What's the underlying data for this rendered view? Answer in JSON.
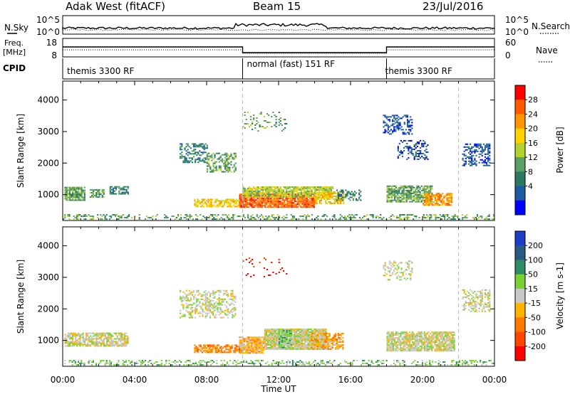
{
  "header": {
    "title": "Adak West (fitACF)",
    "beam": "Beam 15",
    "date": "23/Jul/2016"
  },
  "summary_panels": {
    "nsky": {
      "label": "N.Sky",
      "ticks": [
        "10^5",
        "10^0"
      ]
    },
    "nsearch": {
      "label": "N.Search",
      "ticks": [
        "10^5",
        "10^0"
      ]
    },
    "freq": {
      "label_line1": "Freq.",
      "label_line2": "[MHz]",
      "ticks": [
        "18",
        "8"
      ]
    },
    "nave": {
      "label": "Nave",
      "ticks": [
        "60",
        "0"
      ]
    },
    "cpid": {
      "label": "CPID",
      "segments": [
        {
          "text": "themis 3300 RF",
          "start_h": 0,
          "end_h": 10
        },
        {
          "text": "normal (fast) 151 RF",
          "start_h": 10,
          "end_h": 18
        },
        {
          "text": "themis 3300 RF",
          "start_h": 18,
          "end_h": 22
        }
      ]
    }
  },
  "chart_data": [
    {
      "type": "heatmap",
      "name": "Power",
      "ylabel": "Slant Range [km]",
      "xlabel": "Time UT",
      "xlim": [
        0,
        24
      ],
      "ylim": [
        180,
        4600
      ],
      "yticks": [
        "1000",
        "2000",
        "3000",
        "4000"
      ],
      "xticks": [
        "00:00",
        "04:00",
        "08:00",
        "12:00",
        "16:00",
        "20:00",
        "00:00"
      ],
      "colorbar": {
        "label": "Power [dB]",
        "ticks": [
          "28",
          "24",
          "20",
          "16",
          "12",
          "8",
          "4"
        ],
        "colors": [
          "#ff0000",
          "#ff5a00",
          "#ff9600",
          "#ffd200",
          "#b4d22d",
          "#5aa064",
          "#2d7864",
          "#1e5aa0",
          "#0000ff"
        ]
      },
      "regions": [
        {
          "t0": 0.1,
          "t1": 1.2,
          "r0": 800,
          "r1": 1250,
          "level": 5,
          "dens": 0.85
        },
        {
          "t0": 1.5,
          "t1": 2.3,
          "r0": 900,
          "r1": 1150,
          "level": 5,
          "dens": 0.7
        },
        {
          "t0": 2.6,
          "t1": 3.6,
          "r0": 1000,
          "r1": 1250,
          "level": 6,
          "dens": 0.6
        },
        {
          "t0": 6.5,
          "t1": 8.0,
          "r0": 2000,
          "r1": 2600,
          "level": 6,
          "dens": 0.5
        },
        {
          "t0": 8.0,
          "t1": 9.6,
          "r0": 1700,
          "r1": 2300,
          "level": 5,
          "dens": 0.45
        },
        {
          "t0": 7.3,
          "t1": 10.0,
          "r0": 600,
          "r1": 850,
          "level": 3,
          "dens": 0.7
        },
        {
          "t0": 9.8,
          "t1": 14.0,
          "r0": 580,
          "r1": 1000,
          "level": 1,
          "dens": 0.9
        },
        {
          "t0": 10.0,
          "t1": 15.0,
          "r0": 900,
          "r1": 1250,
          "level": 4,
          "dens": 0.85
        },
        {
          "t0": 14.0,
          "t1": 15.6,
          "r0": 700,
          "r1": 1100,
          "level": 3,
          "dens": 0.7
        },
        {
          "t0": 15.2,
          "t1": 16.6,
          "r0": 800,
          "r1": 1150,
          "level": 6,
          "dens": 0.4
        },
        {
          "t0": 18.0,
          "t1": 20.5,
          "r0": 750,
          "r1": 1250,
          "level": 5,
          "dens": 0.8
        },
        {
          "t0": 20.0,
          "t1": 21.6,
          "r0": 650,
          "r1": 1050,
          "level": 2,
          "dens": 0.75
        },
        {
          "t0": 17.8,
          "t1": 19.4,
          "r0": 2900,
          "r1": 3500,
          "level": 7,
          "dens": 0.4
        },
        {
          "t0": 18.6,
          "t1": 20.3,
          "r0": 2100,
          "r1": 2700,
          "level": 7,
          "dens": 0.3
        },
        {
          "t0": 22.2,
          "t1": 23.7,
          "r0": 1900,
          "r1": 2600,
          "level": 7,
          "dens": 0.45
        },
        {
          "t0": 10.0,
          "t1": 12.4,
          "r0": 3000,
          "r1": 3600,
          "level": 5,
          "dens": 0.15
        },
        {
          "t0": 0.0,
          "t1": 24.0,
          "r0": 200,
          "r1": 380,
          "level": 5,
          "dens": 0.35
        }
      ]
    },
    {
      "type": "heatmap",
      "name": "Velocity",
      "ylabel": "Slant Range [km]",
      "xlabel": "Time UT",
      "xlim": [
        0,
        24
      ],
      "ylim": [
        180,
        4600
      ],
      "yticks": [
        "1000",
        "2000",
        "3000",
        "4000"
      ],
      "xticks": [
        "00:00",
        "04:00",
        "08:00",
        "12:00",
        "16:00",
        "20:00",
        "00:00"
      ],
      "colorbar": {
        "label": "Velocity [m s-1]",
        "ticks": [
          "200",
          "100",
          "50",
          "15",
          "-15",
          "-50",
          "-100",
          "-200"
        ],
        "colors": [
          "#1e3cc8",
          "#285a82",
          "#2d8c64",
          "#78d232",
          "#c8c8c8",
          "#ffb400",
          "#ff7800",
          "#ff4600",
          "#ff0000"
        ]
      },
      "regions": [
        {
          "t0": 0.1,
          "t1": 3.6,
          "r0": 800,
          "r1": 1250,
          "level": 4,
          "dens": 0.75
        },
        {
          "t0": 6.5,
          "t1": 9.6,
          "r0": 1700,
          "r1": 2600,
          "level": 4,
          "dens": 0.45
        },
        {
          "t0": 7.3,
          "t1": 10.0,
          "r0": 600,
          "r1": 850,
          "level": 6,
          "dens": 0.75
        },
        {
          "t0": 9.8,
          "t1": 11.2,
          "r0": 580,
          "r1": 1100,
          "level": 5,
          "dens": 0.9
        },
        {
          "t0": 11.2,
          "t1": 14.6,
          "r0": 700,
          "r1": 1350,
          "level": 4,
          "dens": 0.95
        },
        {
          "t0": 12.0,
          "t1": 12.7,
          "r0": 750,
          "r1": 1300,
          "level": 3,
          "dens": 0.9
        },
        {
          "t0": 13.8,
          "t1": 15.6,
          "r0": 700,
          "r1": 1200,
          "level": 5,
          "dens": 0.75
        },
        {
          "t0": 18.0,
          "t1": 21.8,
          "r0": 650,
          "r1": 1250,
          "level": 4,
          "dens": 0.85
        },
        {
          "t0": 17.8,
          "t1": 19.4,
          "r0": 2900,
          "r1": 3500,
          "level": 4,
          "dens": 0.35
        },
        {
          "t0": 22.2,
          "t1": 23.7,
          "r0": 1900,
          "r1": 2600,
          "level": 4,
          "dens": 0.45
        },
        {
          "t0": 10.0,
          "t1": 12.4,
          "r0": 3000,
          "r1": 3600,
          "level": 8,
          "dens": 0.12
        },
        {
          "t0": 0.0,
          "t1": 24.0,
          "r0": 200,
          "r1": 380,
          "level": 3,
          "dens": 0.3
        }
      ]
    }
  ]
}
